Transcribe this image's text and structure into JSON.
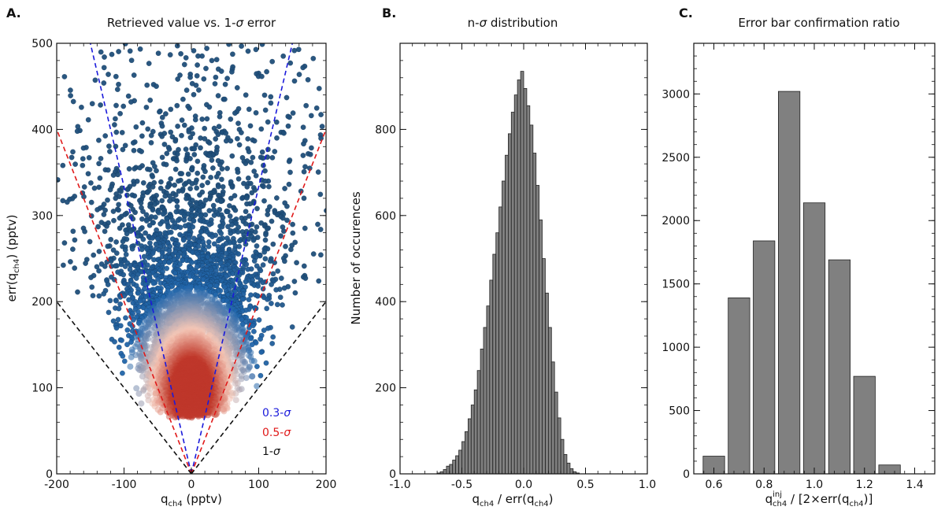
{
  "chart_data": [
    {
      "type": "scatter",
      "panel_label": "A.",
      "title_prefix": "Retrieved value vs. 1-",
      "title_sigma": "σ",
      "title_suffix": " error",
      "xlabel_main": "q",
      "xlabel_sub": "ch4",
      "xlabel_unit": " (pptv)",
      "ylabel_main": "err(q",
      "ylabel_sub": "ch4",
      "ylabel_unit": ") (pptv)",
      "xlim": [
        -200,
        200
      ],
      "ylim": [
        0,
        500
      ],
      "xticks": [
        -200,
        -100,
        0,
        100,
        200
      ],
      "xtick_labels": [
        "-200",
        "-100",
        "0",
        "100",
        "200"
      ],
      "yticks": [
        0,
        100,
        200,
        300,
        400,
        500
      ],
      "ytick_labels": [
        "0",
        "100",
        "200",
        "300",
        "400",
        "500"
      ],
      "density_center": {
        "x": 0,
        "y": 95
      },
      "reference_lines": [
        {
          "name": "0.3-σ",
          "n_sigma": 0.3,
          "color": "#1a1adb",
          "label": "0.3-",
          "label_sigma": "σ"
        },
        {
          "name": "0.5-σ",
          "n_sigma": 0.5,
          "color": "#e01919",
          "label": "0.5-",
          "label_sigma": "σ"
        },
        {
          "name": "1-σ",
          "n_sigma": 1.0,
          "color": "#111111",
          "label": "1-",
          "label_sigma": "σ"
        }
      ],
      "point_colors": {
        "high_density": "#c0392b",
        "mid_density": "#f4c6b6",
        "low_density": "#2166ac",
        "sparse": "#1f4e79"
      }
    },
    {
      "type": "bar",
      "panel_label": "B.",
      "title_prefix": "n-",
      "title_sigma": "σ",
      "title_suffix": " distribution",
      "xlabel_main": "q",
      "xlabel_sub": "ch4",
      "xlabel_mid": " / err(q",
      "xlabel_sub2": "ch4",
      "xlabel_end": ")",
      "ylabel": "Number of occurences",
      "xlim": [
        -1.0,
        1.0
      ],
      "ylim": [
        0,
        1000
      ],
      "xticks": [
        -1.0,
        -0.5,
        0.0,
        0.5,
        1.0
      ],
      "xtick_labels": [
        "-1.0",
        "-0.5",
        "0.0",
        "0.5",
        "1.0"
      ],
      "yticks": [
        0,
        200,
        400,
        600,
        800
      ],
      "ytick_labels": [
        "0",
        "200",
        "400",
        "600",
        "800"
      ],
      "bin_width": 0.025,
      "bin_start": -0.7,
      "values": [
        2,
        5,
        10,
        18,
        22,
        32,
        42,
        55,
        75,
        98,
        128,
        160,
        195,
        240,
        290,
        340,
        390,
        450,
        510,
        560,
        620,
        680,
        740,
        790,
        840,
        880,
        915,
        935,
        895,
        855,
        810,
        745,
        670,
        590,
        500,
        420,
        340,
        260,
        190,
        130,
        80,
        45,
        25,
        12,
        5,
        2
      ],
      "bar_color": "#808080"
    },
    {
      "type": "bar",
      "panel_label": "C.",
      "title": "Error bar confirmation ratio",
      "xlabel_main": "q",
      "xlabel_sup": "inj",
      "xlabel_sub": "ch4",
      "xlabel_mid": " / [2×err(q",
      "xlabel_sub2": "ch4",
      "xlabel_end": ")]",
      "xlim": [
        0.52,
        1.48
      ],
      "ylim": [
        0,
        3400
      ],
      "xticks": [
        0.6,
        0.8,
        1.0,
        1.2,
        1.4
      ],
      "xtick_labels": [
        "0.6",
        "0.8",
        "1.0",
        "1.2",
        "1.4"
      ],
      "yticks": [
        0,
        500,
        1000,
        1500,
        2000,
        2500,
        3000
      ],
      "ytick_labels": [
        "0",
        "500",
        "1000",
        "1500",
        "2000",
        "2500",
        "3000"
      ],
      "bins": [
        0.6,
        0.7,
        0.8,
        0.9,
        1.0,
        1.1,
        1.2,
        1.3
      ],
      "values": [
        140,
        1390,
        1840,
        3020,
        2140,
        1690,
        770,
        70
      ],
      "bin_width": 0.1,
      "bar_color": "#808080"
    }
  ]
}
